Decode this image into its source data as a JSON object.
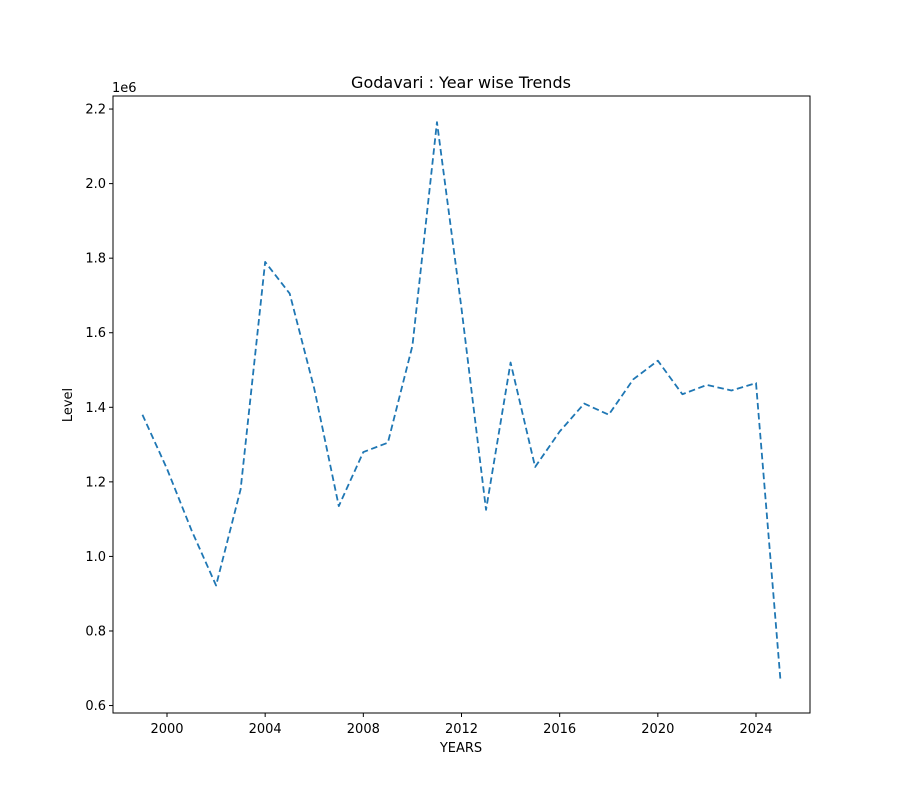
{
  "chart_data": {
    "type": "line",
    "title": "Godavari : Year wise Trends",
    "xlabel": "YEARS",
    "ylabel": "Level",
    "y_offset_label": "1e6",
    "line_style": "dashed",
    "grid": false,
    "xlim": [
      1997.8,
      2026.2
    ],
    "ylim": [
      580000,
      2235000
    ],
    "x_ticks": [
      2000,
      2004,
      2008,
      2012,
      2016,
      2020,
      2024
    ],
    "y_ticks": [
      600000,
      800000,
      1000000,
      1200000,
      1400000,
      1600000,
      1800000,
      2000000,
      2200000
    ],
    "y_tick_labels": [
      "0.6",
      "0.8",
      "1.0",
      "1.2",
      "1.4",
      "1.6",
      "1.8",
      "2.0",
      "2.2"
    ],
    "series": [
      {
        "color": "#1f77b4",
        "x": [
          1999,
          2000,
          2001,
          2002,
          2003,
          2004,
          2005,
          2006,
          2007,
          2008,
          2009,
          2010,
          2011,
          2012,
          2013,
          2014,
          2015,
          2016,
          2017,
          2018,
          2019,
          2020,
          2021,
          2022,
          2023,
          2024,
          2025
        ],
        "y": [
          1380000,
          1235000,
          1070000,
          922000,
          1180000,
          1790000,
          1705000,
          1450000,
          1135000,
          1280000,
          1305000,
          1565000,
          2165000,
          1665000,
          1125000,
          1520000,
          1240000,
          1335000,
          1410000,
          1380000,
          1475000,
          1525000,
          1435000,
          1460000,
          1445000,
          1465000,
          665000
        ]
      }
    ]
  }
}
